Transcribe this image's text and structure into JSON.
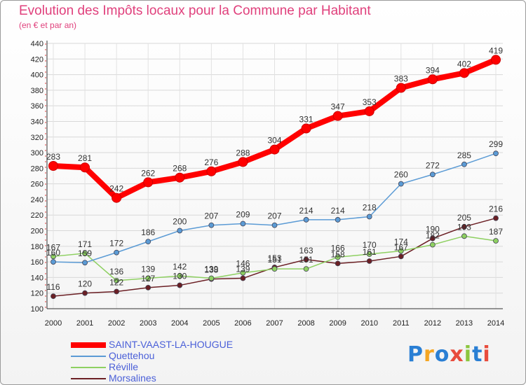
{
  "header": {
    "title": "Evolution des Impôts locaux pour la Commune par Habitant",
    "subtitle": "(en € et par an)"
  },
  "logo": {
    "text": "Proxiti",
    "colors": [
      "#2a7fd4",
      "#f5a623",
      "#2a7fd4",
      "#e84c3d",
      "#8cc63f",
      "#2a7fd4",
      "#e84c3d"
    ]
  },
  "chart_data": {
    "type": "line",
    "title": "Evolution des Impôts locaux pour la Commune par Habitant",
    "subtitle": "(en € et par an)",
    "xlabel": "",
    "ylabel": "",
    "ylim": [
      100,
      440
    ],
    "yticks": [
      100,
      120,
      140,
      160,
      180,
      200,
      220,
      240,
      260,
      280,
      300,
      320,
      340,
      360,
      380,
      400,
      420,
      440
    ],
    "categories": [
      "2000",
      "2001",
      "2002",
      "2003",
      "2004",
      "2005",
      "2006",
      "2007",
      "2008",
      "2009",
      "2010",
      "2011",
      "2012",
      "2013",
      "2014"
    ],
    "grid": true,
    "legend_position": "bottom-left",
    "series": [
      {
        "name": "SAINT-VAAST-LA-HOUGUE",
        "color": "#ff0000",
        "values": [
          283,
          281,
          242,
          262,
          268,
          276,
          288,
          304,
          331,
          347,
          353,
          383,
          394,
          402,
          419
        ],
        "labels": [
          "283",
          "281",
          "242",
          "262",
          "268",
          "276",
          "288",
          "304",
          "331",
          "347",
          "353",
          "383",
          "394",
          "402",
          "419"
        ]
      },
      {
        "name": "Quettehou",
        "color": "#5b9bd5",
        "values": [
          160,
          159,
          172,
          186,
          200,
          207,
          209,
          207,
          214,
          214,
          218,
          260,
          272,
          285,
          299
        ],
        "labels": [
          "160",
          "159",
          "172",
          "186",
          "200",
          "207",
          "209",
          "207",
          "214",
          "214",
          "218",
          "260",
          "272",
          "285",
          "299"
        ]
      },
      {
        "name": "Réville",
        "color": "#8ed061",
        "values": [
          167,
          171,
          136,
          139,
          142,
          139,
          146,
          151,
          151,
          166,
          170,
          174,
          182,
          193,
          187
        ],
        "labels": [
          "167",
          "171",
          "136",
          "139",
          "142",
          "139",
          "146",
          "151",
          "151",
          "166",
          "170",
          "174",
          "182",
          "193",
          "187"
        ]
      },
      {
        "name": "Morsalines",
        "color": "#6b1f24",
        "values": [
          116,
          120,
          122,
          127,
          130,
          138,
          139,
          153,
          163,
          158,
          161,
          167,
          190,
          205,
          216
        ],
        "labels": [
          "116",
          "120",
          "122",
          "127",
          "130",
          "138",
          "139",
          "153",
          "163",
          "158",
          "161",
          "167",
          "190",
          "205",
          "216"
        ]
      }
    ]
  }
}
